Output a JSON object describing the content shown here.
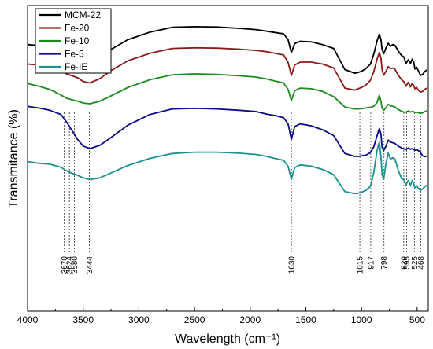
{
  "chart_data": {
    "type": "line",
    "xlabel": "Wavelength (cm⁻¹)",
    "ylabel": "Transmitance (%)",
    "xlim": [
      4000,
      400
    ],
    "x_reversed": true,
    "xticks": [
      4000,
      3500,
      3000,
      2500,
      2000,
      1500,
      1000,
      500
    ],
    "yticks_shown": false,
    "legend_position": "top-left",
    "peak_markers": [
      {
        "x": 3670,
        "label": "3670"
      },
      {
        "x": 3624,
        "label": "3624"
      },
      {
        "x": 3580,
        "label": "3580"
      },
      {
        "x": 3444,
        "label": "3444"
      },
      {
        "x": 1630,
        "label": "1630"
      },
      {
        "x": 1015,
        "label": "1015"
      },
      {
        "x": 917,
        "label": "917"
      },
      {
        "x": 798,
        "label": "798"
      },
      {
        "x": 620,
        "label": "620"
      },
      {
        "x": 595,
        "label": "595"
      },
      {
        "x": 525,
        "label": "525"
      },
      {
        "x": 468,
        "label": "468"
      }
    ],
    "series": [
      {
        "name": "MCM-22",
        "color": "#000000",
        "x": [
          4000,
          3900,
          3800,
          3700,
          3650,
          3600,
          3550,
          3500,
          3440,
          3350,
          3250,
          3100,
          2900,
          2700,
          2500,
          2300,
          2100,
          1950,
          1850,
          1780,
          1700,
          1660,
          1630,
          1600,
          1550,
          1450,
          1350,
          1250,
          1150,
          1060,
          1030,
          1000,
          960,
          920,
          890,
          860,
          840,
          825,
          815,
          800,
          780,
          760,
          740,
          720,
          700,
          670,
          640,
          620,
          600,
          580,
          560,
          545,
          530,
          520,
          505,
          490,
          470,
          450,
          430,
          410
        ],
        "y": [
          92.0,
          91.7,
          91.2,
          90.0,
          89.2,
          88.6,
          88.0,
          87.2,
          86.8,
          88.0,
          90.5,
          93.5,
          95.8,
          97.3,
          97.5,
          97.4,
          97.0,
          96.6,
          96.1,
          95.7,
          95.3,
          93.5,
          89.5,
          92.3,
          93.0,
          92.8,
          92.0,
          90.8,
          84.3,
          83.2,
          83.4,
          83.8,
          84.6,
          86.0,
          89.0,
          93.2,
          95.2,
          93.5,
          90.5,
          89.2,
          91.0,
          92.4,
          91.5,
          92.0,
          91.8,
          90.0,
          88.6,
          88.2,
          86.2,
          87.3,
          86.2,
          87.5,
          86.5,
          84.5,
          85.0,
          84.0,
          82.5,
          82.8,
          83.8,
          84.2
        ]
      },
      {
        "name": "Fe-20",
        "color": "#8b1a1a",
        "x": [
          4000,
          3900,
          3800,
          3700,
          3650,
          3600,
          3550,
          3500,
          3440,
          3350,
          3250,
          3100,
          2900,
          2700,
          2500,
          2300,
          2100,
          1950,
          1850,
          1780,
          1700,
          1660,
          1630,
          1600,
          1550,
          1450,
          1350,
          1250,
          1150,
          1060,
          1030,
          1000,
          960,
          920,
          890,
          860,
          840,
          825,
          815,
          800,
          780,
          760,
          740,
          720,
          700,
          670,
          640,
          620,
          600,
          580,
          560,
          545,
          530,
          520,
          505,
          490,
          470,
          450,
          430,
          410
        ],
        "y": [
          86.0,
          85.7,
          85.3,
          84.0,
          83.0,
          82.4,
          81.8,
          80.6,
          80.2,
          81.5,
          84.0,
          87.0,
          89.3,
          90.8,
          91.0,
          90.9,
          90.6,
          90.2,
          89.8,
          89.3,
          88.8,
          86.5,
          82.5,
          85.7,
          86.6,
          86.6,
          86.0,
          84.8,
          78.6,
          78.0,
          78.4,
          78.8,
          79.6,
          81.0,
          83.6,
          87.6,
          89.6,
          87.8,
          84.2,
          82.6,
          83.8,
          85.2,
          84.6,
          84.8,
          84.4,
          82.6,
          81.2,
          80.6,
          79.2,
          80.4,
          79.0,
          80.0,
          79.4,
          78.4,
          78.8,
          78.0,
          77.4,
          77.6,
          78.3,
          78.6
        ]
      },
      {
        "name": "Fe-10",
        "color": "#1e8a1e",
        "x": [
          4000,
          3900,
          3800,
          3700,
          3650,
          3600,
          3550,
          3500,
          3440,
          3350,
          3250,
          3100,
          2900,
          2700,
          2500,
          2300,
          2100,
          1950,
          1850,
          1780,
          1700,
          1660,
          1630,
          1600,
          1550,
          1450,
          1350,
          1250,
          1150,
          1060,
          1030,
          1000,
          960,
          920,
          890,
          860,
          840,
          825,
          815,
          800,
          780,
          760,
          740,
          720,
          700,
          670,
          640,
          620,
          600,
          580,
          560,
          545,
          530,
          520,
          505,
          490,
          470,
          450,
          430,
          410
        ],
        "y": [
          80.0,
          79.2,
          78.2,
          76.5,
          75.5,
          75.0,
          74.6,
          74.0,
          73.8,
          74.6,
          76.2,
          78.8,
          81.2,
          82.7,
          83.0,
          82.8,
          82.4,
          82.0,
          81.4,
          80.8,
          80.2,
          78.2,
          74.8,
          77.8,
          78.6,
          78.4,
          77.6,
          76.0,
          72.8,
          72.2,
          72.2,
          72.3,
          72.5,
          72.7,
          73.0,
          74.2,
          76.4,
          74.6,
          72.4,
          71.8,
          72.6,
          73.6,
          73.2,
          73.0,
          72.8,
          72.0,
          71.5,
          71.2,
          71.2,
          71.6,
          71.2,
          71.4,
          71.3,
          71.1,
          71.2,
          71.0,
          70.9,
          71.0,
          71.4,
          71.6
        ]
      },
      {
        "name": "Fe-5",
        "color": "#0a0a8b",
        "x": [
          4000,
          3900,
          3800,
          3700,
          3650,
          3600,
          3550,
          3500,
          3440,
          3350,
          3250,
          3100,
          2900,
          2700,
          2500,
          2300,
          2100,
          1950,
          1850,
          1780,
          1700,
          1660,
          1630,
          1600,
          1550,
          1450,
          1350,
          1250,
          1150,
          1060,
          1030,
          1000,
          960,
          920,
          890,
          860,
          840,
          825,
          815,
          800,
          780,
          760,
          740,
          720,
          700,
          670,
          640,
          620,
          600,
          580,
          560,
          545,
          530,
          520,
          505,
          490,
          470,
          450,
          430,
          410
        ],
        "y": [
          73.0,
          72.5,
          71.8,
          70.5,
          68.2,
          65.5,
          62.8,
          60.8,
          60.0,
          61.0,
          63.4,
          67.2,
          70.5,
          72.2,
          72.4,
          72.2,
          71.8,
          71.4,
          70.6,
          70.2,
          69.5,
          67.6,
          62.8,
          66.8,
          67.6,
          67.0,
          65.8,
          64.0,
          58.5,
          57.6,
          57.6,
          57.8,
          58.0,
          58.8,
          60.5,
          64.0,
          66.2,
          64.4,
          60.4,
          59.4,
          60.8,
          62.6,
          62.0,
          61.8,
          61.6,
          60.8,
          60.2,
          59.9,
          59.7,
          60.2,
          59.8,
          60.0,
          59.7,
          59.5,
          59.7,
          59.4,
          58.8,
          57.8,
          57.5,
          57.8
        ]
      },
      {
        "name": "Fe-IE",
        "color": "#1a9090",
        "x": [
          4000,
          3900,
          3800,
          3700,
          3650,
          3600,
          3550,
          3500,
          3440,
          3350,
          3250,
          3100,
          2900,
          2700,
          2500,
          2300,
          2100,
          1950,
          1850,
          1780,
          1700,
          1660,
          1630,
          1600,
          1550,
          1450,
          1350,
          1250,
          1150,
          1060,
          1030,
          1000,
          960,
          920,
          890,
          860,
          840,
          825,
          815,
          800,
          780,
          760,
          740,
          720,
          700,
          670,
          640,
          620,
          600,
          580,
          560,
          545,
          530,
          520,
          505,
          490,
          470,
          450,
          430,
          410
        ],
        "y": [
          56.0,
          55.5,
          55.2,
          54.3,
          53.2,
          52.4,
          51.8,
          51.0,
          50.5,
          51.0,
          52.5,
          54.8,
          57.0,
          58.5,
          58.9,
          58.9,
          58.6,
          58.2,
          57.6,
          57.0,
          56.4,
          54.6,
          50.6,
          54.2,
          55.0,
          54.6,
          53.6,
          52.0,
          46.8,
          46.2,
          46.3,
          46.6,
          47.2,
          48.4,
          52.6,
          59.5,
          62.0,
          57.5,
          52.0,
          50.6,
          55.5,
          58.6,
          56.8,
          57.2,
          56.8,
          53.4,
          50.8,
          50.4,
          48.9,
          50.2,
          48.8,
          50.2,
          49.2,
          48.0,
          48.6,
          47.8,
          47.2,
          47.6,
          48.4,
          48.8
        ]
      }
    ]
  }
}
